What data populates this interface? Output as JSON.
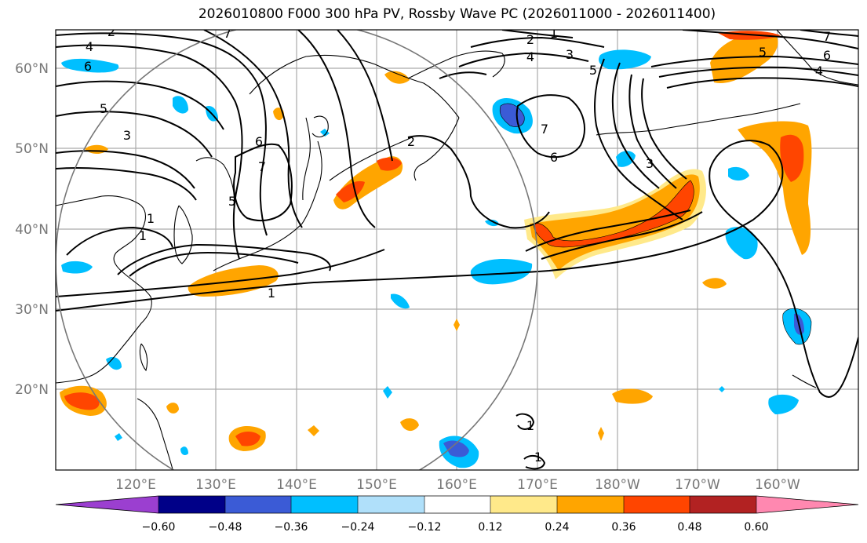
{
  "title": "2026010800 F000 300 hPa PV, Rossby Wave PC (2026011000 - 2026011400)",
  "lon_labels": [
    "120°E",
    "130°E",
    "140°E",
    "150°E",
    "160°E",
    "170°E",
    "180°W",
    "170°W",
    "160°W"
  ],
  "lat_labels": [
    "60°N",
    "50°N",
    "40°N",
    "30°N",
    "20°N"
  ],
  "colorbar": {
    "ticks": [
      "−0.60",
      "−0.48",
      "−0.36",
      "−0.24",
      "−0.12",
      "0.12",
      "0.24",
      "0.36",
      "0.48",
      "0.60"
    ],
    "colors": [
      "#9b3fd0",
      "#000088",
      "#3b5bd6",
      "#00bfff",
      "#b0e0fa",
      "#ffffff",
      "#ffe98a",
      "#ffa500",
      "#ff4500",
      "#b22222",
      "#ff88b0"
    ]
  },
  "contour_labels": [
    "1",
    "1",
    "1",
    "1",
    "1",
    "1",
    "2",
    "2",
    "2",
    "3",
    "3",
    "3",
    "4",
    "4",
    "4",
    "5",
    "5",
    "5",
    "5",
    "6",
    "6",
    "6",
    "6",
    "7",
    "7",
    "7",
    "7"
  ],
  "map_extent": {
    "lon_min": 110,
    "lon_max": 210,
    "lat_min": 10,
    "lat_max": 65
  }
}
